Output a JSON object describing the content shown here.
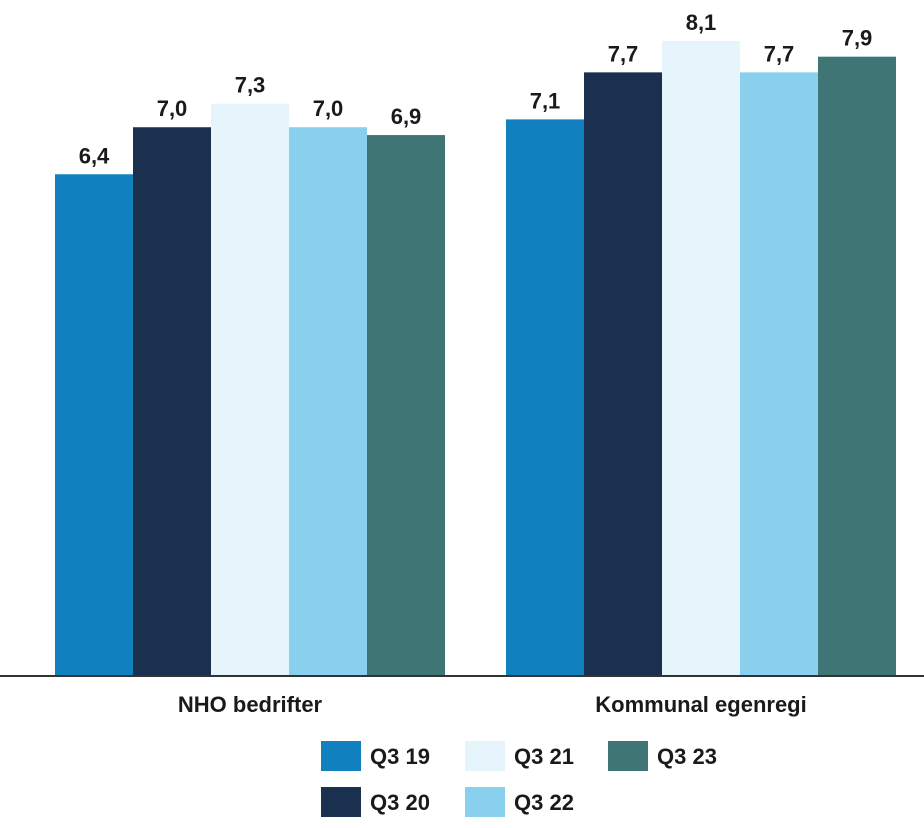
{
  "chart_data": {
    "type": "bar",
    "categories": [
      "NHO bedrifter",
      "Kommunal egenregi"
    ],
    "series": [
      {
        "name": "Q3 19",
        "color": "#1080bf",
        "values": [
          6.4,
          7.1
        ],
        "labels": [
          "6,4",
          "7,1"
        ]
      },
      {
        "name": "Q3 20",
        "color": "#1b2f4e",
        "values": [
          7.0,
          7.7
        ],
        "labels": [
          "7,0",
          "7,7"
        ]
      },
      {
        "name": "Q3 21",
        "color": "#e6f4fc",
        "values": [
          7.3,
          8.1
        ],
        "labels": [
          "7,3",
          "8,1"
        ]
      },
      {
        "name": "Q3 22",
        "color": "#88d0ee",
        "values": [
          7.0,
          7.7
        ],
        "labels": [
          "7,0",
          "7,7"
        ]
      },
      {
        "name": "Q3 23",
        "color": "#3f7675",
        "values": [
          6.9,
          7.9
        ],
        "labels": [
          "6,9",
          "7,9"
        ]
      }
    ],
    "ylim": [
      0,
      8.1
    ],
    "grid": false,
    "legend_position": "bottom",
    "axis_color": "#333333"
  }
}
